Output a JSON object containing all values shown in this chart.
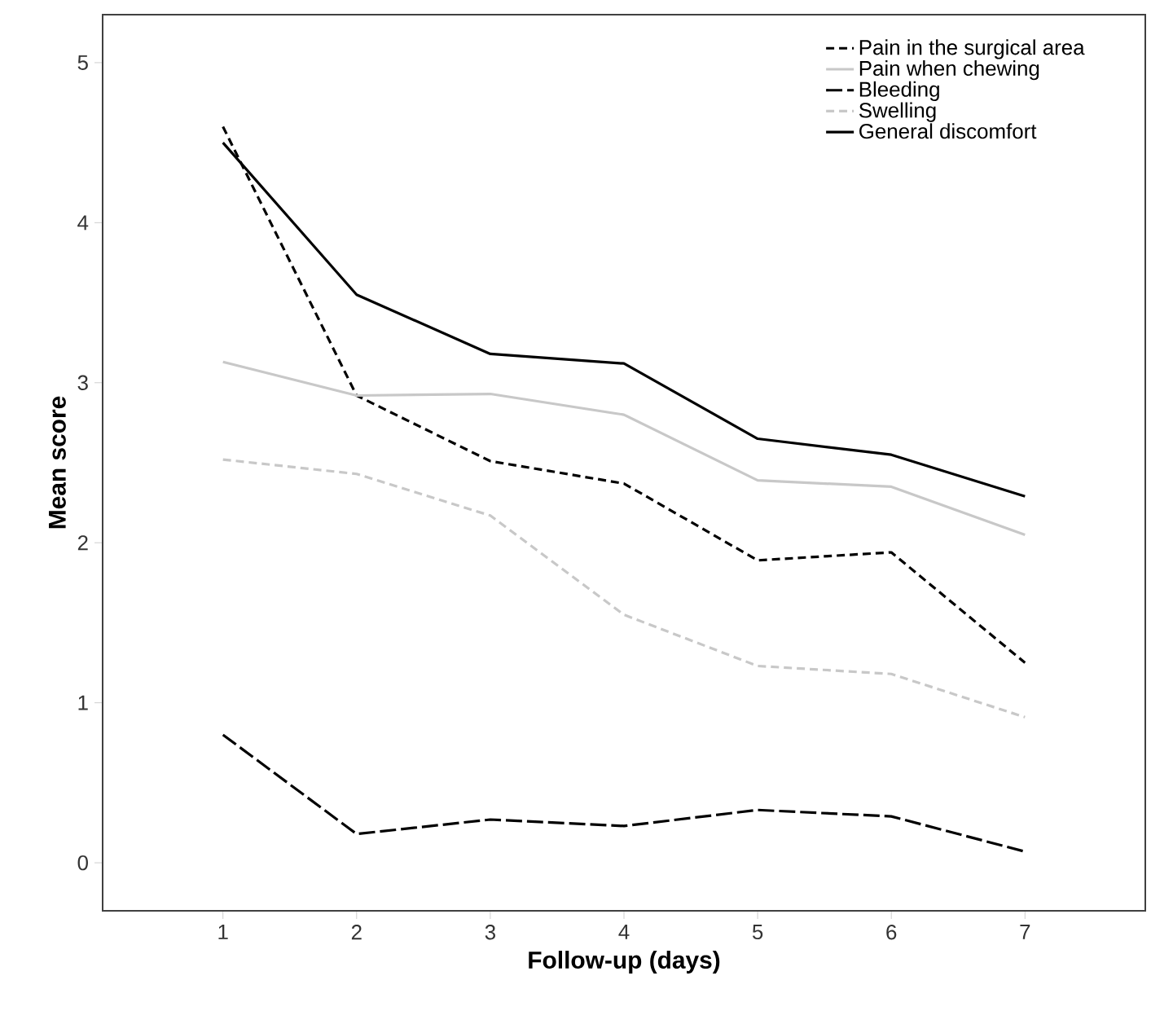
{
  "chart_data": {
    "type": "line",
    "xlabel": "Follow-up (days)",
    "ylabel": "Mean score",
    "x": [
      1,
      2,
      3,
      4,
      5,
      6,
      7
    ],
    "xlim": [
      0.1,
      7.9
    ],
    "xticks": [
      1,
      2,
      3,
      4,
      5,
      6,
      7
    ],
    "ylim": [
      -0.3,
      5.3
    ],
    "yticks": [
      0,
      1,
      2,
      3,
      4,
      5
    ],
    "grid": false,
    "legend": "top right",
    "marker": "none",
    "series": [
      {
        "name": "Pain in the surgical area",
        "color": "#000000",
        "line_style": "dashed",
        "values": [
          4.6,
          2.92,
          2.51,
          2.37,
          1.89,
          1.94,
          1.25
        ]
      },
      {
        "name": "Pain when chewing",
        "color": "#c8c8c8",
        "line_style": "solid",
        "values": [
          3.13,
          2.92,
          2.93,
          2.8,
          2.39,
          2.35,
          2.05
        ]
      },
      {
        "name": "Bleeding",
        "color": "#000000",
        "line_style": "longdashed",
        "values": [
          0.8,
          0.18,
          0.27,
          0.23,
          0.33,
          0.29,
          0.07
        ]
      },
      {
        "name": "Swelling",
        "color": "#c8c8c8",
        "line_style": "dashed",
        "values": [
          2.52,
          2.43,
          2.17,
          1.55,
          1.23,
          1.18,
          0.91
        ]
      },
      {
        "name": "General discomfort",
        "color": "#000000",
        "line_style": "solid",
        "values": [
          4.5,
          3.55,
          3.18,
          3.12,
          2.65,
          2.55,
          2.29
        ]
      }
    ]
  }
}
